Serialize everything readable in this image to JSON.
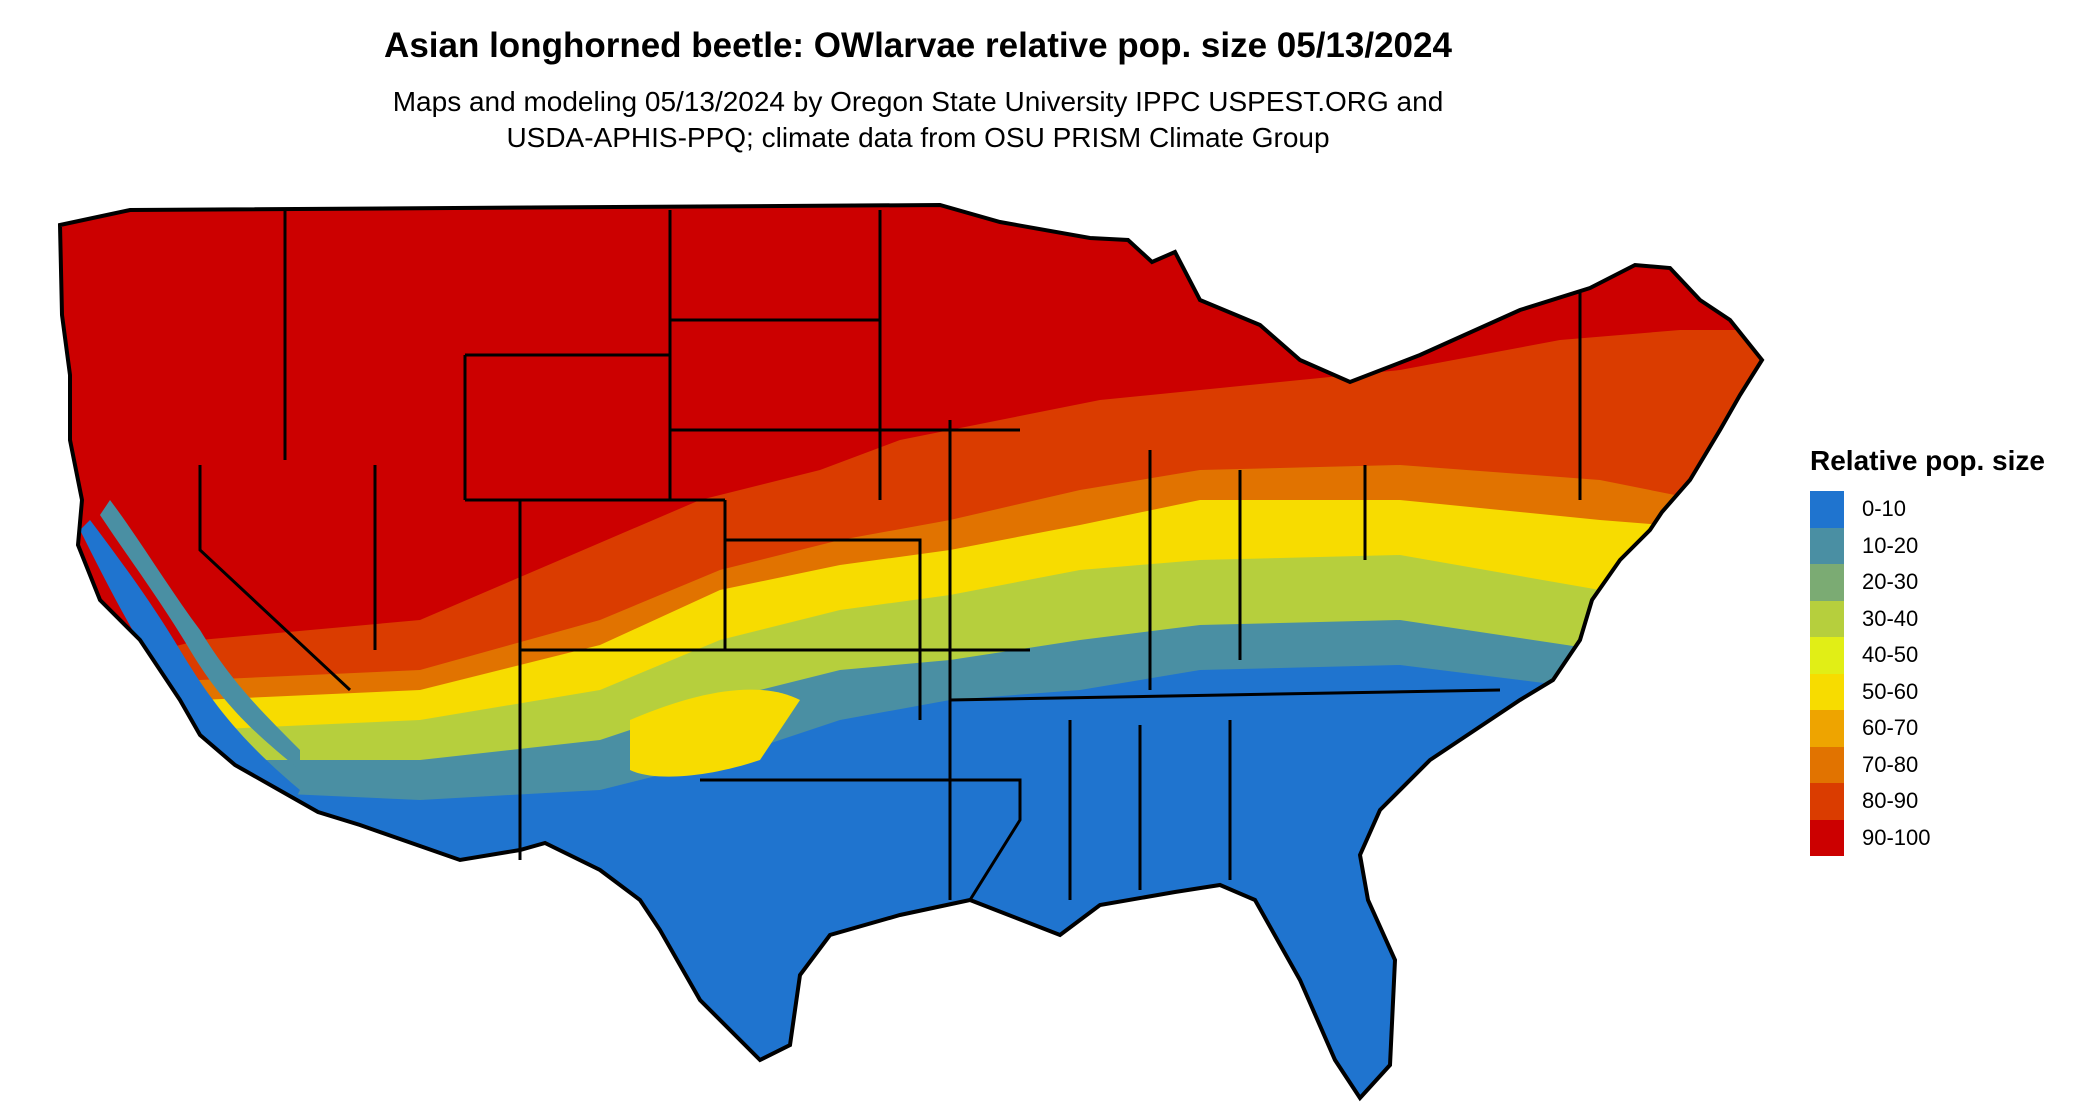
{
  "title": "Asian longhorned beetle: OWlarvae relative pop. size 05/13/2024",
  "subtitle_line1": "Maps and modeling 05/13/2024 by Oregon State University IPPC USPEST.ORG and",
  "subtitle_line2": "USDA-APHIS-PPQ; climate data from OSU PRISM Climate Group",
  "legend": {
    "title": "Relative pop. size",
    "items": [
      {
        "label": "0-10",
        "color": "#1f74cf"
      },
      {
        "label": "10-20",
        "color": "#4a8fa3"
      },
      {
        "label": "20-30",
        "color": "#7bab73"
      },
      {
        "label": "30-40",
        "color": "#b6cf3d"
      },
      {
        "label": "40-50",
        "color": "#e1ee16"
      },
      {
        "label": "50-60",
        "color": "#f7dc00"
      },
      {
        "label": "60-70",
        "color": "#eea400"
      },
      {
        "label": "70-80",
        "color": "#e17300"
      },
      {
        "label": "80-90",
        "color": "#da3c00"
      },
      {
        "label": "90-100",
        "color": "#cc0000"
      }
    ]
  },
  "map": {
    "region": "Contiguous United States",
    "date": "05/13/2024",
    "pattern": "Cooler north and interior west at 90-100; warm south at 0-10; banded transition across mid-latitudes"
  }
}
